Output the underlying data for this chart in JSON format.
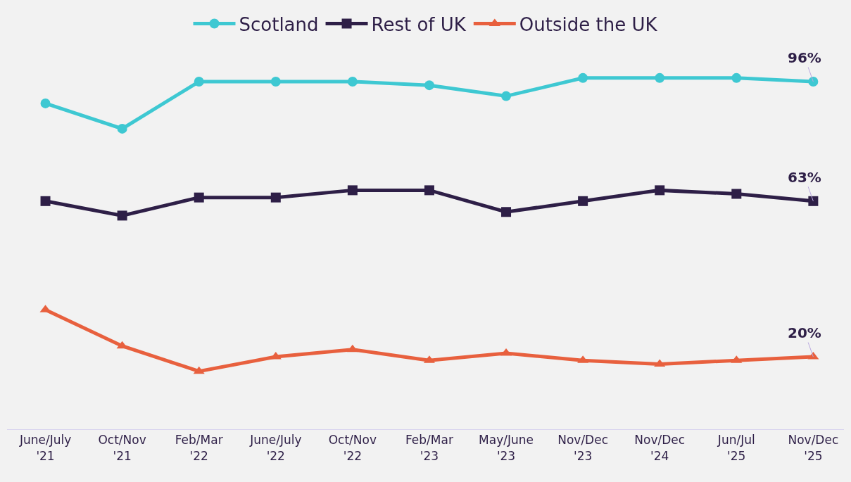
{
  "chart_data": {
    "type": "line",
    "categories": [
      "June/July\n'21",
      "Oct/Nov\n'21",
      "Feb/Mar\n'22",
      "June/July\n'22",
      "Oct/Nov\n'22",
      "Feb/Mar\n'23",
      "May/June\n'23",
      "Nov/Dec\n'23",
      "Nov/Dec\n'24",
      "Jun/Jul\n'25",
      "Nov/Dec\n'25"
    ],
    "series": [
      {
        "name": "Scotland",
        "color": "#3ec8d2",
        "marker": "circle",
        "values": [
          90,
          83,
          96,
          96,
          96,
          95,
          92,
          97,
          97,
          97,
          96
        ],
        "value_labels": [
          null,
          null,
          null,
          null,
          null,
          null,
          null,
          null,
          null,
          null,
          "96%"
        ]
      },
      {
        "name": "Rest of UK",
        "color": "#2e1f47",
        "marker": "square",
        "values": [
          63,
          59,
          64,
          64,
          66,
          66,
          60,
          63,
          66,
          65,
          63
        ],
        "value_labels": [
          null,
          null,
          null,
          null,
          null,
          null,
          null,
          null,
          null,
          null,
          "63%"
        ]
      },
      {
        "name": "Outside the UK",
        "color": "#e8603e",
        "marker": "triangle",
        "values": [
          33,
          23,
          16,
          20,
          22,
          19,
          21,
          19,
          18,
          19,
          20
        ],
        "value_labels": [
          null,
          null,
          null,
          null,
          null,
          null,
          null,
          null,
          null,
          null,
          "20%"
        ]
      }
    ],
    "tick_labels": "x",
    "grid": false,
    "legend": "top",
    "line_style": "solid"
  }
}
